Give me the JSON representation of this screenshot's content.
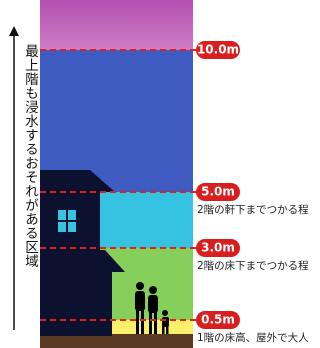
{
  "side_note": "最上階も浸水するおそれがある区域",
  "levels": [
    {
      "label": "10.0m",
      "description": null
    },
    {
      "label": "5.0m",
      "description": "2階の軒下までつかる程"
    },
    {
      "label": "3.0m",
      "description": "2階の床下までつかる程"
    },
    {
      "label": "0.5m",
      "description": "1階の床高、屋外で大人"
    }
  ]
}
